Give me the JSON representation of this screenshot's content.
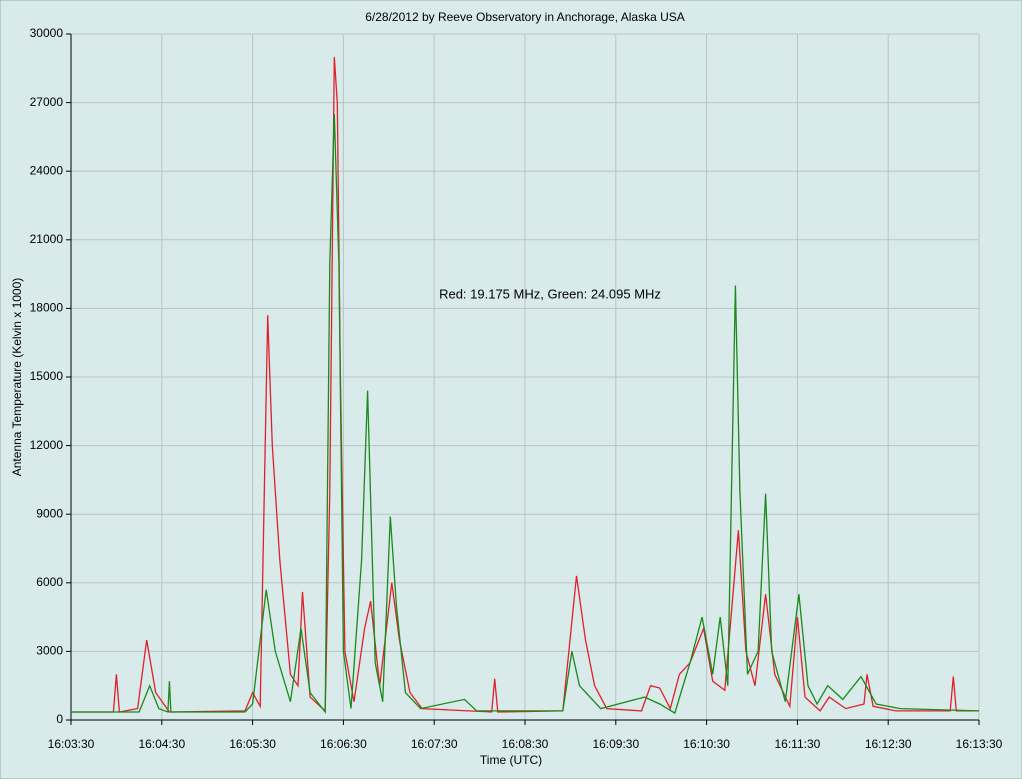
{
  "chart_data": {
    "type": "line",
    "title": "6/28/2012  by  Reeve Observatory  in  Anchorage, Alaska  USA",
    "annotation": "Red: 19.175 MHz, Green: 24.095 MHz",
    "x_label": "Time (UTC)",
    "y_label": "Antenna Temperature (Kelvin x 1000)",
    "xlim": [
      "16:03:30",
      "16:13:30"
    ],
    "xticks": [
      "16:03:30",
      "16:04:30",
      "16:05:30",
      "16:06:30",
      "16:07:30",
      "16:08:30",
      "16:09:30",
      "16:10:30",
      "16:11:30",
      "16:12:30",
      "16:13:30"
    ],
    "ylim": [
      0,
      30000
    ],
    "yticks": [
      0,
      3000,
      6000,
      9000,
      12000,
      15000,
      18000,
      21000,
      24000,
      27000,
      30000
    ],
    "grid": true,
    "series": [
      {
        "color": "#e0202a",
        "x": [
          "16:03:30",
          "16:03:58",
          "16:04:00",
          "16:04:02",
          "16:04:14",
          "16:04:20",
          "16:04:26",
          "16:04:35",
          "16:05:25",
          "16:05:30",
          "16:05:35",
          "16:05:40",
          "16:05:43",
          "16:05:48",
          "16:05:55",
          "16:06:00",
          "16:06:03",
          "16:06:08",
          "16:06:18",
          "16:06:21",
          "16:06:24",
          "16:06:26",
          "16:06:28",
          "16:06:31",
          "16:06:37",
          "16:06:44",
          "16:06:48",
          "16:06:54",
          "16:07:02",
          "16:07:07",
          "16:07:14",
          "16:07:22",
          "16:08:08",
          "16:08:10",
          "16:08:12",
          "16:08:55",
          "16:09:04",
          "16:09:10",
          "16:09:16",
          "16:09:24",
          "16:09:47",
          "16:09:53",
          "16:09:59",
          "16:10:06",
          "16:10:12",
          "16:10:19",
          "16:10:28",
          "16:10:34",
          "16:10:42",
          "16:10:51",
          "16:10:56",
          "16:11:02",
          "16:11:09",
          "16:11:15",
          "16:11:25",
          "16:11:30",
          "16:11:35",
          "16:11:45",
          "16:11:51",
          "16:12:02",
          "16:12:14",
          "16:12:16",
          "16:12:20",
          "16:12:35",
          "16:13:11",
          "16:13:13",
          "16:13:15",
          "16:13:30"
        ],
        "values": [
          350,
          350,
          2000,
          350,
          500,
          3500,
          1200,
          350,
          400,
          1200,
          600,
          17700,
          12000,
          7000,
          2000,
          1500,
          5600,
          1000,
          400,
          10000,
          29000,
          27000,
          15000,
          3000,
          800,
          4000,
          5200,
          1500,
          6000,
          3500,
          1200,
          500,
          350,
          1800,
          350,
          400,
          6300,
          3500,
          1500,
          500,
          400,
          1500,
          1400,
          500,
          2000,
          2500,
          4000,
          1700,
          1300,
          8300,
          3000,
          1500,
          5500,
          2000,
          600,
          4500,
          1000,
          400,
          1000,
          500,
          700,
          2000,
          600,
          400,
          400,
          1900,
          400,
          400
        ]
      },
      {
        "color": "#1a8a1a",
        "x": [
          "16:03:30",
          "16:04:15",
          "16:04:22",
          "16:04:28",
          "16:04:34",
          "16:04:35",
          "16:04:36",
          "16:05:25",
          "16:05:30",
          "16:05:39",
          "16:05:45",
          "16:05:55",
          "16:06:02",
          "16:06:08",
          "16:06:18",
          "16:06:21",
          "16:06:24",
          "16:06:27",
          "16:06:30",
          "16:06:35",
          "16:06:42",
          "16:06:46",
          "16:06:51",
          "16:06:56",
          "16:07:01",
          "16:07:05",
          "16:07:11",
          "16:07:21",
          "16:07:50",
          "16:07:58",
          "16:08:55",
          "16:09:01",
          "16:09:06",
          "16:09:20",
          "16:09:49",
          "16:09:59",
          "16:10:09",
          "16:10:19",
          "16:10:27",
          "16:10:34",
          "16:10:39",
          "16:10:44",
          "16:10:49",
          "16:10:52",
          "16:10:57",
          "16:11:04",
          "16:11:09",
          "16:11:13",
          "16:11:22",
          "16:11:31",
          "16:11:37",
          "16:11:43",
          "16:11:50",
          "16:12:00",
          "16:12:12",
          "16:12:22",
          "16:12:38",
          "16:13:30"
        ],
        "values": [
          350,
          350,
          1500,
          500,
          350,
          1700,
          350,
          350,
          700,
          5700,
          3000,
          800,
          4000,
          1200,
          350,
          20000,
          26500,
          20000,
          3000,
          500,
          7000,
          14400,
          2500,
          800,
          8900,
          5000,
          1200,
          500,
          900,
          400,
          400,
          3000,
          1500,
          500,
          1000,
          700,
          300,
          2500,
          4500,
          2000,
          4500,
          1500,
          19000,
          10000,
          2000,
          3000,
          9900,
          3000,
          800,
          5500,
          1500,
          700,
          1500,
          900,
          1900,
          700,
          500,
          400
        ]
      }
    ]
  }
}
